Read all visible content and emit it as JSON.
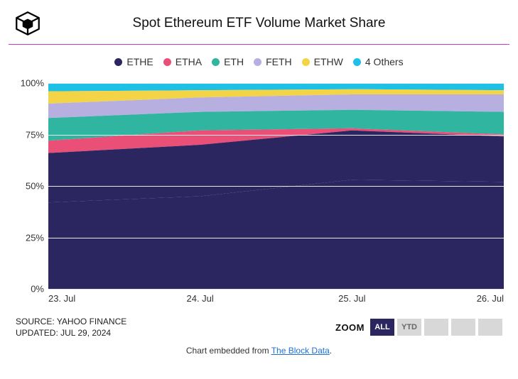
{
  "title": "Spot Ethereum ETF Volume Market Share",
  "logo_name": "the-block-logo",
  "divider_color": "#c938c9",
  "legend": [
    {
      "label": "ETHE",
      "color": "#2b2560"
    },
    {
      "label": "ETHA",
      "color": "#ea4f77"
    },
    {
      "label": "ETH",
      "color": "#2fb5a0"
    },
    {
      "label": "FETH",
      "color": "#b8afe1"
    },
    {
      "label": "ETHW",
      "color": "#f4d447"
    },
    {
      "label": "4 Others",
      "color": "#1fc0e6"
    }
  ],
  "chart": {
    "type": "stacked-area-100",
    "background_color": "#ffffff",
    "grid_color": "#e8e8e8",
    "ylim": [
      0,
      100
    ],
    "yticks": [
      0,
      25,
      50,
      75,
      100
    ],
    "ytick_suffix": "%",
    "x_labels": [
      "23. Jul",
      "24. Jul",
      "25. Jul",
      "26. Jul"
    ],
    "x_positions_pct": [
      0,
      33.333,
      66.667,
      100
    ],
    "series_order_top_to_bottom": [
      "4 Others",
      "ETHW",
      "FETH",
      "ETH",
      "ETHA",
      "ETHE"
    ],
    "cumulative_tops_pct": {
      "4 Others": [
        100,
        100,
        100,
        100
      ],
      "ETHW": [
        96,
        96.5,
        97,
        96.5
      ],
      "FETH": [
        90,
        93,
        94.5,
        94.5
      ],
      "ETH": [
        83,
        86,
        87,
        86
      ],
      "ETHA": [
        72,
        77,
        78,
        75
      ],
      "ETHE": [
        66,
        70,
        77,
        74
      ]
    },
    "ethe_bottom": [
      42,
      45,
      53,
      52
    ],
    "label_fontsize": 13,
    "title_fontsize": 19
  },
  "meta": {
    "source_label": "SOURCE:",
    "source_value": "YAHOO FINANCE",
    "updated_label": "UPDATED:",
    "updated_value": "JUL 29, 2024"
  },
  "zoom": {
    "label": "ZOOM",
    "buttons": [
      "ALL",
      "YTD",
      "",
      "",
      ""
    ],
    "active_index": 0,
    "active_bg": "#2b2560",
    "inactive_bg": "#d8d8d8"
  },
  "attribution": {
    "prefix": "Chart embedded from ",
    "link_text": "The Block Data",
    "suffix": "."
  }
}
